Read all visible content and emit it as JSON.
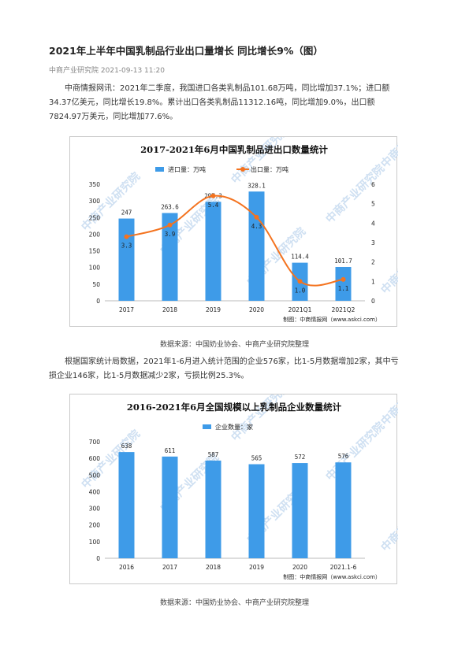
{
  "article": {
    "title": "2021年上半年中国乳制品行业出口量增长 同比增长9%（图）",
    "source_name": "中商产业研究院",
    "date": "2021-09-13 11:20"
  },
  "paragraph1": {
    "lines": [
      "中商情报网讯：2021年二季度，我国进口各类乳制品101.68万吨，同比增加37.1%；进口额",
      "34.37亿美元，同比增长19.8%。累计出口各类乳制品11312.16吨，同比增加9.0%，出口额",
      "7824.97万美元，同比增加77.6%。"
    ]
  },
  "paragraph2": {
    "lines": [
      "根据国家统计局数据，2021年1-6月进入统计范围的企业576家，比1-5月数据增加2家，其中亏",
      "损企业146家，比1-5月数据减少2家，亏损比例25.3%。"
    ]
  },
  "source1": "数据来源：中国奶业协会、中商产业研究院整理",
  "source2": "数据来源：中国奶业协会、中商产业研究院整理",
  "watermark": "中商产业研究院",
  "chart_data": [
    {
      "type": "bar",
      "title": "2017-2021年6月中国乳制品进出口数量统计",
      "categories": [
        "2017",
        "2018",
        "2019",
        "2020",
        "2021Q1",
        "2021Q2"
      ],
      "series": [
        {
          "name": "进口量：万吨",
          "type": "bar",
          "values": [
            247,
            263.6,
            297.3,
            328.1,
            114.4,
            101.7
          ],
          "labels": [
            "247",
            "263.6",
            "297.3",
            "328.1",
            "114.4",
            "101.7"
          ],
          "color": "#3e9be8"
        },
        {
          "name": "出口量：万吨",
          "type": "line",
          "values": [
            3.3,
            3.9,
            5.4,
            4.3,
            1.0,
            1.1
          ],
          "labels": [
            "3.3",
            "3.9",
            "5.4",
            "4.3",
            "1.0",
            "1.1"
          ],
          "color": "#f4731f"
        }
      ],
      "y_left": {
        "min": 0,
        "max": 350,
        "step": 50,
        "ticks": [
          "0",
          "50",
          "100",
          "150",
          "200",
          "250",
          "300",
          "350"
        ]
      },
      "y_right": {
        "min": 0,
        "max": 6,
        "step": 1,
        "ticks": [
          "0",
          "1",
          "2",
          "3",
          "4",
          "5",
          "6"
        ]
      },
      "grid": false,
      "legend": "top-center",
      "credit": "制图：中商情报网（www.askci.com）"
    },
    {
      "type": "bar",
      "title": "2016-2021年6月全国规模以上乳制品企业数量统计",
      "categories": [
        "2016",
        "2017",
        "2018",
        "2019",
        "2020",
        "2021.1-6"
      ],
      "series": [
        {
          "name": "企业数量：家",
          "type": "bar",
          "values": [
            638,
            611,
            587,
            565,
            572,
            576
          ],
          "labels": [
            "638",
            "611",
            "587",
            "565",
            "572",
            "576"
          ],
          "color": "#3e9be8"
        }
      ],
      "y_left": {
        "min": 0,
        "max": 700,
        "step": 100,
        "ticks": [
          "0",
          "100",
          "200",
          "300",
          "400",
          "500",
          "600",
          "700"
        ]
      },
      "grid": false,
      "legend": "top-center",
      "credit": "制图：中商情报网（www.askci.com）"
    }
  ]
}
